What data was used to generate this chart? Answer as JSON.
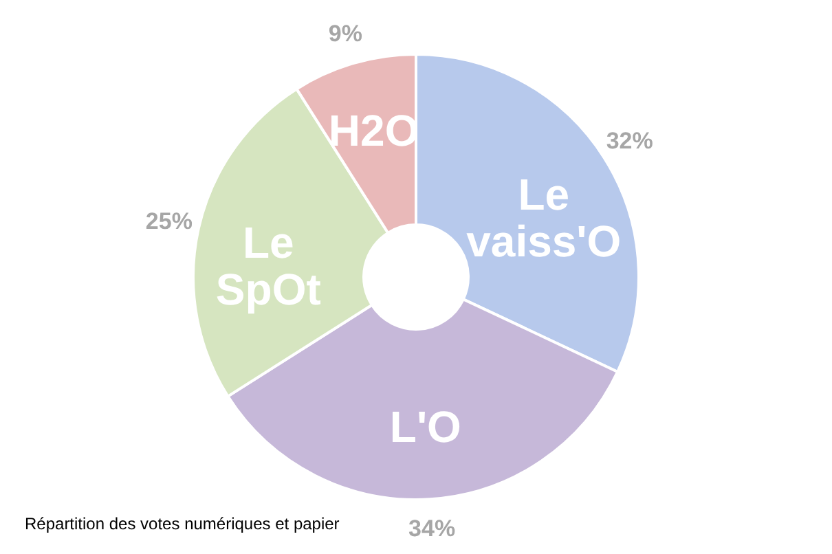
{
  "chart_data": {
    "type": "donut",
    "categories": [
      "Le vaiss'O",
      "L'O",
      "Le SpOt",
      "H2O"
    ],
    "values": [
      32,
      34,
      25,
      9
    ],
    "colors": [
      "#b7c9ec",
      "#c6b8d9",
      "#d6e5c0",
      "#e9b9b9"
    ],
    "value_labels": [
      "32%",
      "34%",
      "25%",
      "9%"
    ],
    "legend": false,
    "annotations": [
      "Répartition des votes numériques et papier"
    ]
  }
}
